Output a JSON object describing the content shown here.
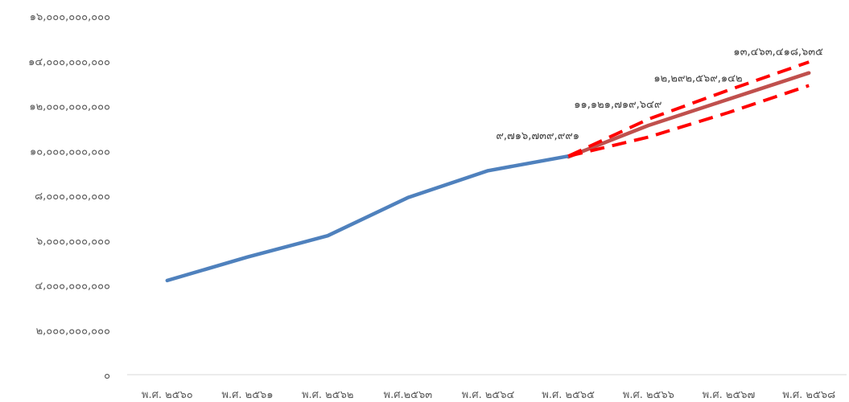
{
  "chart_data": {
    "type": "line",
    "title": "",
    "xlabel": "",
    "ylabel": "",
    "grid": false,
    "legend": "none",
    "categories": [
      "พ.ศ. ๒๕๖๐",
      "พ.ศ. ๒๕๖๑",
      "พ.ศ. ๒๕๖๒",
      "พ.ศ.๒๕๖๓",
      "พ.ศ. ๒๕๖๔",
      "พ.ศ. ๒๕๖๕",
      "พ.ศ. ๒๕๖๖",
      "พ.ศ. ๒๕๖๗",
      "พ.ศ. ๒๕๖๘"
    ],
    "ylim": [
      0,
      16000000000
    ],
    "yticks": [
      0,
      2000000000,
      4000000000,
      6000000000,
      8000000000,
      10000000000,
      12000000000,
      14000000000,
      16000000000
    ],
    "ytick_labels": [
      "๐",
      "๒,๐๐๐,๐๐๐,๐๐๐",
      "๔,๐๐๐,๐๐๐,๐๐๐",
      "๖,๐๐๐,๐๐๐,๐๐๐",
      "๘,๐๐๐,๐๐๐,๐๐๐",
      "๑๐,๐๐๐,๐๐๐,๐๐๐",
      "๑๒,๐๐๐,๐๐๐,๐๐๐",
      "๑๔,๐๐๐,๐๐๐,๐๐๐",
      "๑๖,๐๐๐,๐๐๐,๐๐๐"
    ],
    "series": [
      {
        "style": "actual",
        "color": "#4f81bd",
        "values": [
          4200000000,
          5250000000,
          6200000000,
          7900000000,
          9100000000,
          9750000000,
          null,
          null,
          null
        ]
      },
      {
        "style": "forecast",
        "color": "#c0504d",
        "values": [
          null,
          null,
          null,
          null,
          null,
          9716739991,
          11121719649,
          12292569142,
          13463418635
        ]
      },
      {
        "style": "upper-bound",
        "color": "#ff0000",
        "dashed": true,
        "values": [
          null,
          null,
          null,
          null,
          null,
          9750000000,
          11400000000,
          12700000000,
          13950000000
        ]
      },
      {
        "style": "lower-bound",
        "color": "#ff0000",
        "dashed": true,
        "values": [
          null,
          null,
          null,
          null,
          null,
          9750000000,
          10600000000,
          11700000000,
          12900000000
        ]
      }
    ],
    "data_labels": [
      {
        "index": 5,
        "value": 9716739991,
        "text": "๙,๗๑๖,๗๓๙,๙๙๑"
      },
      {
        "index": 6,
        "value": 11121719649,
        "text": "๑๑,๑๒๑,๗๑๙,๖๔๙"
      },
      {
        "index": 7,
        "value": 12292569142,
        "text": "๑๒,๒๙๒,๕๖๙,๑๔๒"
      },
      {
        "index": 8,
        "value": 13463418635,
        "text": "๑๓,๔๖๓,๔๑๘,๖๓๕"
      }
    ]
  }
}
